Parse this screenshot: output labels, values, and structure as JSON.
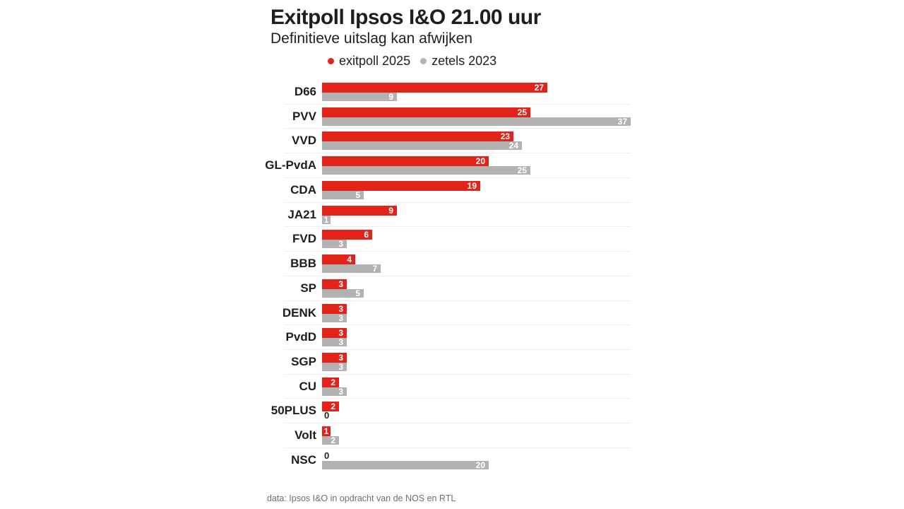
{
  "header": {
    "title": "Exitpoll Ipsos I&O 21.00 uur",
    "subtitle": "Definitieve uitslag kan afwijken"
  },
  "legend": {
    "items": [
      {
        "label": "exitpoll 2025",
        "color": "#e2231a"
      },
      {
        "label": "zetels 2023",
        "color": "#b2b2b2"
      }
    ]
  },
  "chart_data": {
    "type": "bar",
    "orientation": "horizontal",
    "title": "Exitpoll Ipsos I&O 21.00 uur",
    "subtitle": "Definitieve uitslag kan afwijken",
    "categories": [
      "D66",
      "PVV",
      "VVD",
      "GL-PvdA",
      "CDA",
      "JA21",
      "FVD",
      "BBB",
      "SP",
      "DENK",
      "PvdD",
      "SGP",
      "CU",
      "50PLUS",
      "Volt",
      "NSC"
    ],
    "series": [
      {
        "name": "exitpoll 2025",
        "color": "#e2231a",
        "values": [
          27,
          25,
          23,
          20,
          19,
          9,
          6,
          4,
          3,
          3,
          3,
          3,
          2,
          2,
          1,
          0
        ]
      },
      {
        "name": "zetels 2023",
        "color": "#b2b2b2",
        "values": [
          9,
          37,
          24,
          25,
          5,
          1,
          3,
          7,
          5,
          3,
          3,
          3,
          3,
          0,
          2,
          20
        ]
      }
    ],
    "xlim": [
      0,
      37
    ],
    "value_labels": "inside-end",
    "grid": "row-separators",
    "legend_position": "top"
  },
  "footer": {
    "source": "data: Ipsos I&O in opdracht van de NOS en RTL"
  },
  "colors": {
    "exitpoll": "#e2231a",
    "zetels": "#b2b2b2",
    "text": "#1e1e1e",
    "value_text": "#ffffff",
    "separator": "#ededed",
    "source_text": "#6e6e6e",
    "background": "#ffffff"
  }
}
